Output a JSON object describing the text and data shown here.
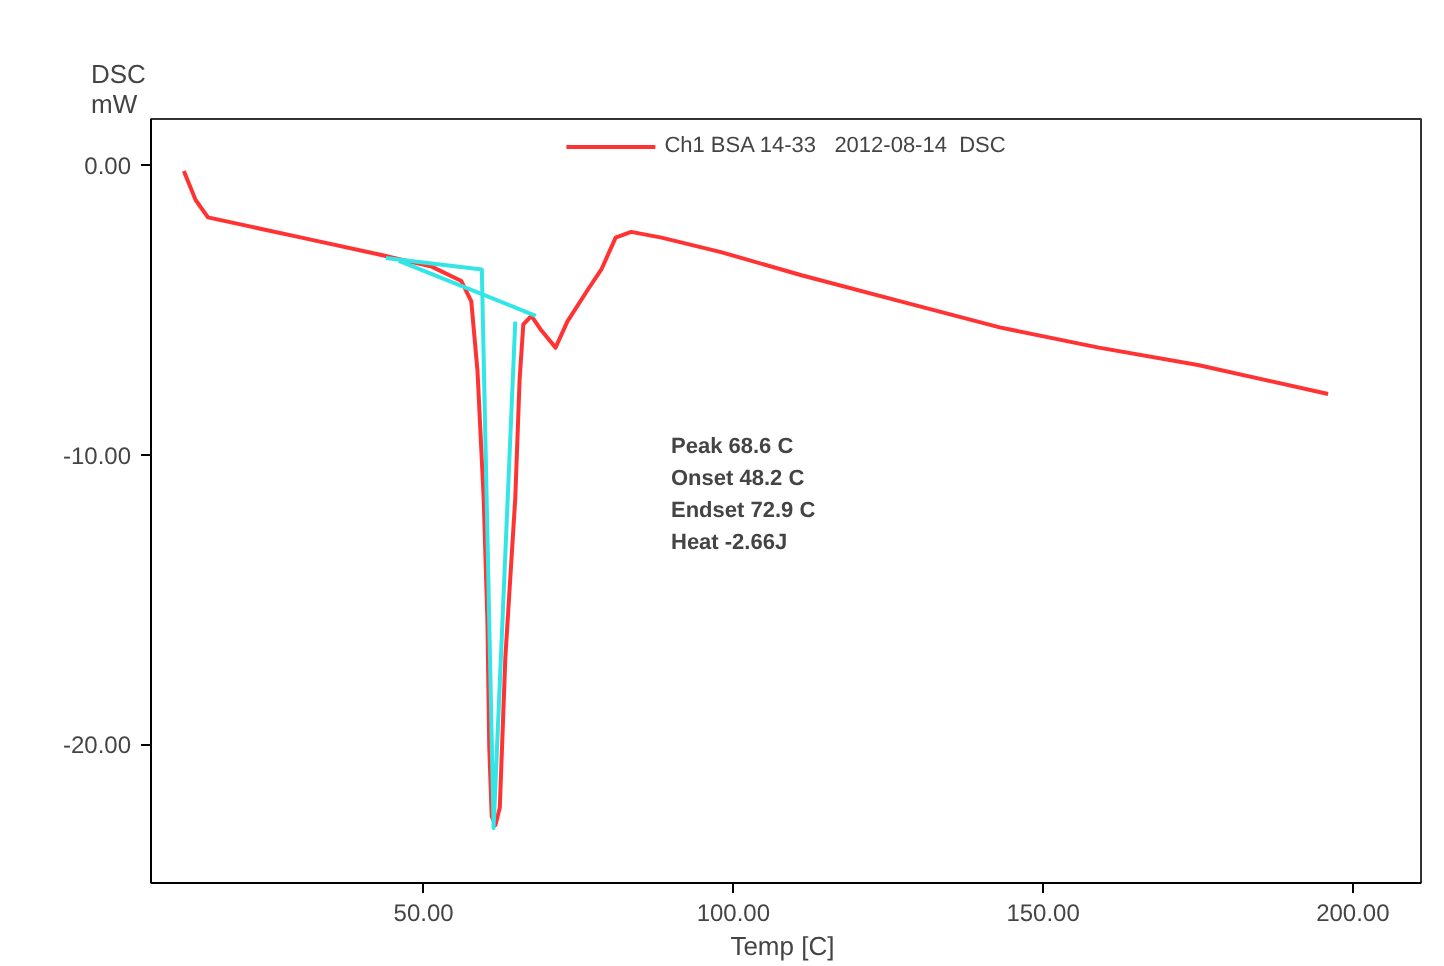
{
  "chart_data": {
    "type": "line",
    "xlabel": "Temp  [C]",
    "ylabel": "DSC\nmW",
    "xlim": [
      6,
      211
    ],
    "ylim": [
      -24.8,
      1.6
    ],
    "xticks": [
      {
        "value": 50,
        "label": "50.00"
      },
      {
        "value": 100,
        "label": "100.00"
      },
      {
        "value": 150,
        "label": "150.00"
      },
      {
        "value": 200,
        "label": "200.00"
      }
    ],
    "yticks": [
      {
        "value": 0,
        "label": "0.00"
      },
      {
        "value": -10,
        "label": "-10.00"
      },
      {
        "value": -20,
        "label": "-20.00"
      }
    ],
    "grid": false,
    "legend": "top",
    "marker": "none",
    "line_style": "solid",
    "annotations": [
      "Peak      68.6 C",
      "Onset    48.2 C",
      "Endset  72.9 C",
      "Heat     -2.66J"
    ],
    "series": [
      {
        "name": "Ch1 BSA 14-33   2012-08-14  DSC",
        "color": "#ff3333",
        "x": [
          11.3,
          13.2,
          15.2,
          30.3,
          43.2,
          51.3,
          56.1,
          57.7,
          58.7,
          59.7,
          60.3,
          60.6,
          61.0,
          61.6,
          62.3,
          63.2,
          64.8,
          65.5,
          66.1,
          67.4,
          69.0,
          71.3,
          73.2,
          76.5,
          78.7,
          81,
          83.5,
          88.4,
          98,
          111,
          127,
          143,
          159,
          175,
          196
        ],
        "values": [
          -0.2,
          -1.2,
          -1.8,
          -2.5,
          -3.1,
          -3.5,
          -4.0,
          -4.7,
          -7.1,
          -11.5,
          -15.7,
          -20.1,
          -22.5,
          -22.8,
          -22.2,
          -17.0,
          -11.5,
          -7.4,
          -5.5,
          -5.2,
          -5.7,
          -6.3,
          -5.4,
          -4.3,
          -3.6,
          -2.5,
          -2.3,
          -2.5,
          -3.0,
          -3.8,
          -4.7,
          -5.6,
          -6.3,
          -6.9,
          -7.9
        ]
      },
      {
        "color": "#33e5e5",
        "x": [
          43.9,
          59.4,
          61.3,
          64.8
        ],
        "values": [
          -3.2,
          -3.6,
          -22.9,
          -5.4
        ]
      },
      {
        "color": "#33e5e5",
        "x": [
          46,
          68.1
        ],
        "values": [
          -3.3,
          -5.2
        ]
      }
    ]
  }
}
